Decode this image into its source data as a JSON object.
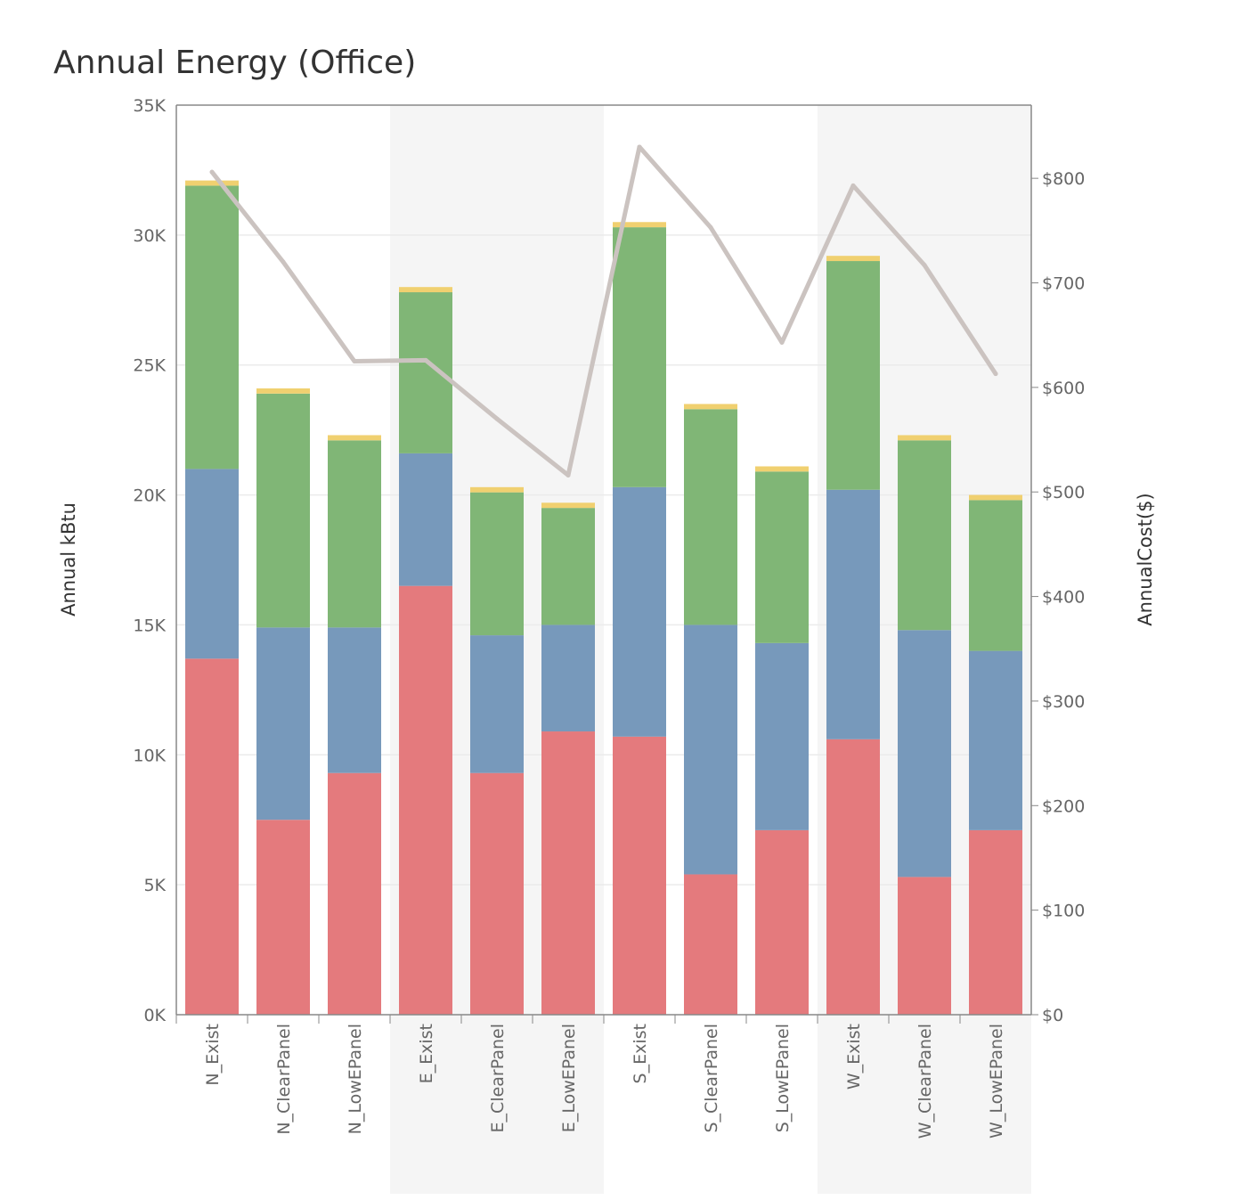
{
  "chart_data": {
    "type": "bar",
    "stacked": true,
    "title": "Annual Energy (Office)",
    "ylabel": "Annual kBtu",
    "y2label": "AnnualCost($)",
    "xlabel": "",
    "ylim": [
      0,
      35000
    ],
    "y2lim": [
      0,
      870
    ],
    "yticks": [
      "0K",
      "5K",
      "10K",
      "15K",
      "20K",
      "25K",
      "30K",
      "35K"
    ],
    "y2ticks": [
      "$0",
      "$100",
      "$200",
      "$300",
      "$400",
      "$500",
      "$600",
      "$700",
      "$800"
    ],
    "categories": [
      "N_Exist",
      "N_ClearPanel",
      "N_LowEPanel",
      "E_Exist",
      "E_ClearPanel",
      "E_LowEPanel",
      "S_Exist",
      "S_ClearPanel",
      "S_LowEPanel",
      "W_Exist",
      "W_ClearPanel",
      "W_LowEPanel"
    ],
    "series": [
      {
        "color": "#e47a7d",
        "values": [
          13700,
          7500,
          9300,
          16500,
          9300,
          10900,
          10700,
          5400,
          7100,
          10600,
          5300,
          7100
        ]
      },
      {
        "color": "#7799bb",
        "values": [
          7300,
          7400,
          5600,
          5100,
          5300,
          4100,
          9600,
          9600,
          7200,
          9600,
          9500,
          6900
        ]
      },
      {
        "color": "#80b676",
        "values": [
          10900,
          9000,
          7200,
          6200,
          5500,
          4500,
          10000,
          8300,
          6600,
          8800,
          7300,
          5800
        ]
      },
      {
        "color": "#f0d070",
        "values": [
          200,
          200,
          200,
          200,
          200,
          200,
          200,
          200,
          200,
          200,
          200,
          200
        ]
      }
    ],
    "line": {
      "color": "#cbc3c0",
      "axis": "secondary",
      "values": [
        806,
        720,
        625,
        626,
        570,
        516,
        830,
        753,
        643,
        793,
        717,
        613
      ]
    },
    "grid": true,
    "group_shading": true
  }
}
